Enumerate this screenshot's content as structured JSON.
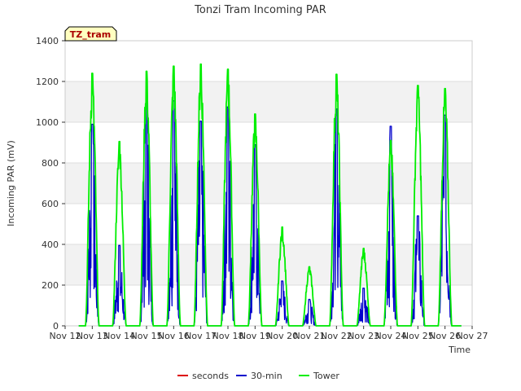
{
  "chart_data": {
    "type": "line",
    "title": "Tonzi Tram Incoming PAR",
    "xlabel": "Time",
    "ylabel": "Incoming PAR (mV)",
    "badge": "TZ_tram",
    "x_ticks": [
      "Nov 12",
      "Nov 13",
      "Nov 14",
      "Nov 15",
      "Nov 16",
      "Nov 17",
      "Nov 18",
      "Nov 19",
      "Nov 20",
      "Nov 21",
      "Nov 22",
      "Nov 23",
      "Nov 24",
      "Nov 25",
      "Nov 26",
      "Nov 27"
    ],
    "x_range": [
      "Nov 12",
      "Nov 27"
    ],
    "ylim": [
      0,
      1400
    ],
    "y_ticks": [
      0,
      200,
      400,
      600,
      800,
      1000,
      1200,
      1400
    ],
    "grid": true,
    "legend_position": "bottom",
    "series": [
      {
        "name": "seconds",
        "color": "#dd0000",
        "points": []
      },
      {
        "name": "30-min",
        "color": "#0000cc",
        "daily_peaks": [
          {
            "day": "Nov 13",
            "peak": 990
          },
          {
            "day": "Nov 14",
            "peak": 395
          },
          {
            "day": "Nov 15",
            "peak": 1110
          },
          {
            "day": "Nov 16",
            "peak": 1105
          },
          {
            "day": "Nov 17",
            "peak": 1005
          },
          {
            "day": "Nov 18",
            "peak": 1075
          },
          {
            "day": "Nov 19",
            "peak": 890
          },
          {
            "day": "Nov 20",
            "peak": 220
          },
          {
            "day": "Nov 21",
            "peak": 130
          },
          {
            "day": "Nov 22",
            "peak": 1065
          },
          {
            "day": "Nov 23",
            "peak": 185
          },
          {
            "day": "Nov 24",
            "peak": 980
          },
          {
            "day": "Nov 25",
            "peak": 540
          },
          {
            "day": "Nov 26",
            "peak": 1035
          }
        ]
      },
      {
        "name": "Tower",
        "color": "#00ee00",
        "daily_peaks": [
          {
            "day": "Nov 13",
            "peak": 1240
          },
          {
            "day": "Nov 14",
            "peak": 905
          },
          {
            "day": "Nov 15",
            "peak": 1250
          },
          {
            "day": "Nov 16",
            "peak": 1275
          },
          {
            "day": "Nov 17",
            "peak": 1285
          },
          {
            "day": "Nov 18",
            "peak": 1260
          },
          {
            "day": "Nov 19",
            "peak": 1040
          },
          {
            "day": "Nov 20",
            "peak": 485
          },
          {
            "day": "Nov 21",
            "peak": 290
          },
          {
            "day": "Nov 22",
            "peak": 1235
          },
          {
            "day": "Nov 23",
            "peak": 380
          },
          {
            "day": "Nov 24",
            "peak": 910
          },
          {
            "day": "Nov 25",
            "peak": 1180
          },
          {
            "day": "Nov 26",
            "peak": 1165
          }
        ]
      }
    ]
  }
}
